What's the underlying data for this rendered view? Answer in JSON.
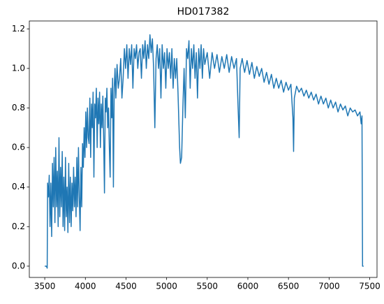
{
  "chart_data": {
    "type": "line",
    "title": "HD017382",
    "x": [
      3500,
      3520,
      3530,
      3535,
      3545,
      3555,
      3565,
      3575,
      3585,
      3595,
      3605,
      3615,
      3625,
      3635,
      3645,
      3655,
      3665,
      3675,
      3685,
      3695,
      3705,
      3715,
      3725,
      3735,
      3745,
      3755,
      3765,
      3775,
      3785,
      3795,
      3805,
      3815,
      3825,
      3835,
      3845,
      3855,
      3865,
      3875,
      3885,
      3895,
      3905,
      3915,
      3925,
      3935,
      3945,
      3955,
      3965,
      3975,
      3985,
      3995,
      4005,
      4015,
      4025,
      4035,
      4045,
      4055,
      4065,
      4075,
      4085,
      4095,
      4105,
      4115,
      4125,
      4135,
      4145,
      4155,
      4165,
      4175,
      4185,
      4195,
      4205,
      4215,
      4225,
      4235,
      4245,
      4255,
      4265,
      4275,
      4285,
      4295,
      4305,
      4315,
      4325,
      4335,
      4345,
      4355,
      4365,
      4375,
      4390,
      4405,
      4420,
      4435,
      4450,
      4465,
      4480,
      4495,
      4510,
      4525,
      4540,
      4555,
      4570,
      4585,
      4600,
      4615,
      4630,
      4645,
      4660,
      4675,
      4690,
      4705,
      4720,
      4735,
      4750,
      4765,
      4780,
      4795,
      4810,
      4825,
      4840,
      4855,
      4870,
      4885,
      4900,
      4915,
      4930,
      4945,
      4960,
      4975,
      4990,
      5005,
      5020,
      5035,
      5050,
      5065,
      5080,
      5095,
      5110,
      5125,
      5140,
      5160,
      5170,
      5185,
      5200,
      5215,
      5230,
      5245,
      5260,
      5275,
      5290,
      5305,
      5320,
      5335,
      5350,
      5365,
      5380,
      5395,
      5410,
      5425,
      5440,
      5455,
      5470,
      5500,
      5530,
      5560,
      5590,
      5620,
      5650,
      5680,
      5710,
      5740,
      5770,
      5800,
      5830,
      5860,
      5880,
      5893,
      5905,
      5930,
      5960,
      5990,
      6020,
      6050,
      6080,
      6110,
      6140,
      6170,
      6200,
      6230,
      6260,
      6290,
      6320,
      6350,
      6380,
      6410,
      6440,
      6470,
      6500,
      6530,
      6555,
      6563,
      6572,
      6600,
      6630,
      6660,
      6690,
      6720,
      6750,
      6780,
      6810,
      6840,
      6870,
      6900,
      6930,
      6960,
      6990,
      7020,
      7050,
      7080,
      7110,
      7140,
      7170,
      7200,
      7230,
      7260,
      7290,
      7320,
      7350,
      7380,
      7395,
      7405,
      7412,
      7425
    ],
    "series": [
      {
        "color": "#1f77b4",
        "values": [
          0,
          0,
          -0.01,
          0.42,
          0.35,
          0.46,
          0.2,
          0.42,
          0.15,
          0.52,
          0.3,
          0.55,
          0.22,
          0.6,
          0.3,
          0.48,
          0.2,
          0.65,
          0.25,
          0.5,
          0.3,
          0.58,
          0.2,
          0.45,
          0.18,
          0.55,
          0.25,
          0.4,
          0.17,
          0.52,
          0.22,
          0.45,
          0.2,
          0.42,
          0.28,
          0.5,
          0.3,
          0.45,
          0.25,
          0.55,
          0.3,
          0.6,
          0.35,
          0.18,
          0.5,
          0.3,
          0.62,
          0.5,
          0.7,
          0.55,
          0.78,
          0.6,
          0.8,
          0.65,
          0.62,
          0.85,
          0.55,
          0.82,
          0.7,
          0.88,
          0.45,
          0.82,
          0.75,
          0.9,
          0.6,
          0.85,
          0.72,
          0.88,
          0.6,
          0.82,
          0.7,
          0.86,
          0.65,
          0.37,
          0.85,
          0.78,
          0.9,
          0.7,
          0.8,
          0.6,
          0.45,
          0.9,
          0.75,
          0.95,
          0.4,
          0.9,
          1.0,
          0.85,
          1.02,
          0.9,
          0.95,
          1.05,
          0.85,
          0.95,
          1.1,
          1.0,
          1.12,
          0.95,
          1.1,
          1.02,
          1.12,
          0.9,
          1.1,
          1.05,
          1.12,
          1.0,
          1.08,
          1.1,
          0.95,
          1.12,
          1.05,
          1.14,
          1.0,
          1.12,
          1.05,
          1.17,
          1.08,
          1.15,
          1.0,
          0.7,
          1.05,
          1.12,
          1.0,
          1.1,
          0.85,
          1.12,
          1.0,
          1.08,
          0.9,
          1.1,
          1.0,
          1.08,
          0.95,
          1.1,
          0.9,
          1.05,
          0.95,
          1.05,
          0.88,
          0.6,
          0.52,
          0.55,
          0.8,
          1.0,
          0.75,
          1.1,
          1.05,
          1.14,
          0.9,
          1.1,
          1.0,
          1.12,
          0.95,
          1.08,
          0.85,
          1.1,
          1.0,
          1.12,
          0.95,
          1.1,
          1.02,
          1.08,
          0.95,
          1.08,
          1.0,
          1.07,
          0.98,
          1.06,
          1.0,
          1.07,
          0.98,
          1.06,
          1.0,
          1.05,
          0.8,
          0.65,
          1.0,
          1.05,
          0.98,
          1.04,
          0.97,
          1.03,
          0.95,
          1.01,
          0.96,
          1.0,
          0.93,
          0.98,
          0.92,
          0.97,
          0.9,
          0.95,
          0.9,
          0.94,
          0.88,
          0.93,
          0.89,
          0.92,
          0.75,
          0.58,
          0.85,
          0.91,
          0.88,
          0.9,
          0.86,
          0.89,
          0.85,
          0.88,
          0.84,
          0.87,
          0.82,
          0.86,
          0.82,
          0.85,
          0.8,
          0.84,
          0.8,
          0.83,
          0.78,
          0.82,
          0.79,
          0.81,
          0.76,
          0.8,
          0.78,
          0.79,
          0.76,
          0.78,
          0.72,
          0.76,
          0,
          0
        ]
      }
    ],
    "xlim": [
      3310,
      7590
    ],
    "xticks": [
      3500,
      4000,
      4500,
      5000,
      5500,
      6000,
      6500,
      7000,
      7500
    ],
    "ylim": [
      -0.057,
      1.24
    ],
    "yticks": [
      {
        "value": 0,
        "label": "0.0"
      },
      {
        "value": 0.2,
        "label": "0.2"
      },
      {
        "value": 0.4,
        "label": "0.4"
      },
      {
        "value": 0.6,
        "label": "0.6"
      },
      {
        "value": 0.8,
        "label": "0.8"
      },
      {
        "value": 1.0,
        "label": "1.0"
      },
      {
        "value": 1.2,
        "label": "1.2"
      }
    ]
  }
}
